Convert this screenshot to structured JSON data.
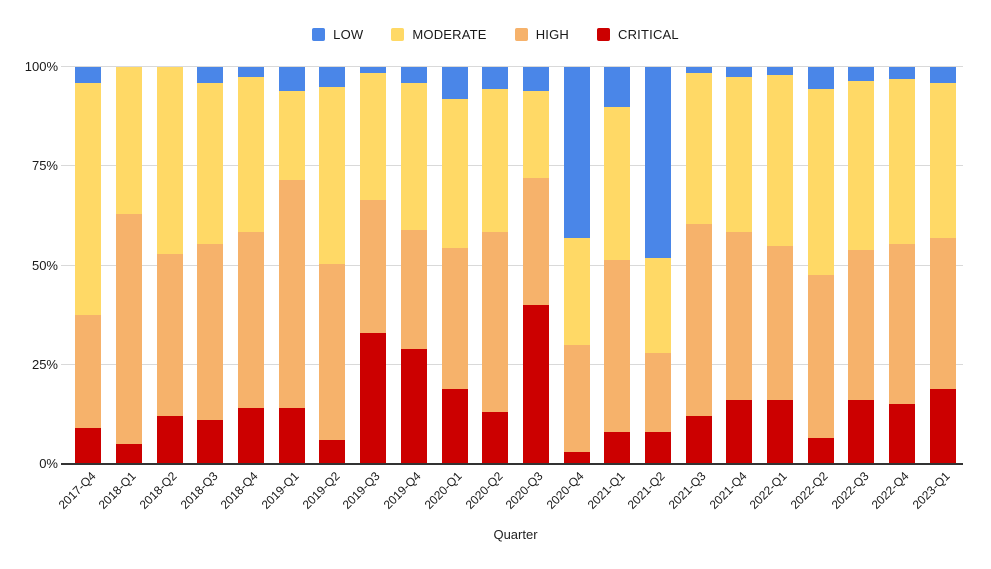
{
  "chart_data": {
    "type": "bar",
    "variant": "100%-stacked-column",
    "title": "",
    "xlabel": "Quarter",
    "ylabel": "",
    "ylim": [
      0,
      100
    ],
    "ytick_labels": [
      "0%",
      "25%",
      "50%",
      "75%",
      "100%"
    ],
    "grid": true,
    "legend_position": "top-center",
    "stack_order_bottom_to_top": [
      "CRITICAL",
      "HIGH",
      "MODERATE",
      "LOW"
    ],
    "categories": [
      "2017-Q4",
      "2018-Q1",
      "2018-Q2",
      "2018-Q3",
      "2018-Q4",
      "2019-Q1",
      "2019-Q2",
      "2019-Q3",
      "2019-Q4",
      "2020-Q1",
      "2020-Q2",
      "2020-Q3",
      "2020-Q4",
      "2021-Q1",
      "2021-Q2",
      "2021-Q3",
      "2021-Q4",
      "2022-Q1",
      "2022-Q2",
      "2022-Q3",
      "2022-Q4",
      "2023-Q1"
    ],
    "series": [
      {
        "name": "LOW",
        "color": "#4A86E8",
        "values": [
          4,
          0,
          0,
          4,
          2.5,
          6,
          5,
          1.5,
          4,
          8,
          5.5,
          6,
          43,
          10,
          48,
          1.5,
          2.5,
          2,
          5.5,
          3.5,
          3,
          4
        ]
      },
      {
        "name": "MODERATE",
        "color": "#FFD966",
        "values": [
          58.5,
          37,
          47,
          40.5,
          39,
          22.5,
          44.5,
          32,
          37,
          37.5,
          36,
          22,
          27,
          38.5,
          24,
          38,
          39,
          43,
          47,
          42.5,
          41.5,
          39
        ]
      },
      {
        "name": "HIGH",
        "color": "#F6B26B",
        "values": [
          28.5,
          58,
          41,
          44.5,
          44.5,
          57.5,
          44.5,
          33.5,
          30,
          35.5,
          45.5,
          32,
          27,
          43.5,
          20,
          48.5,
          42.5,
          39,
          41,
          38,
          40.5,
          38
        ]
      },
      {
        "name": "CRITICAL",
        "color": "#CC0000",
        "values": [
          9,
          5,
          12,
          11,
          14,
          14,
          6,
          33,
          29,
          19,
          13,
          40,
          3,
          8,
          8,
          12,
          16,
          16,
          6.5,
          16,
          15,
          19
        ]
      }
    ]
  },
  "styles": {
    "background": "#FFFFFF",
    "gridline_color": "#D9D9D9",
    "baseline_color": "#333333",
    "text_color": "#111111"
  }
}
